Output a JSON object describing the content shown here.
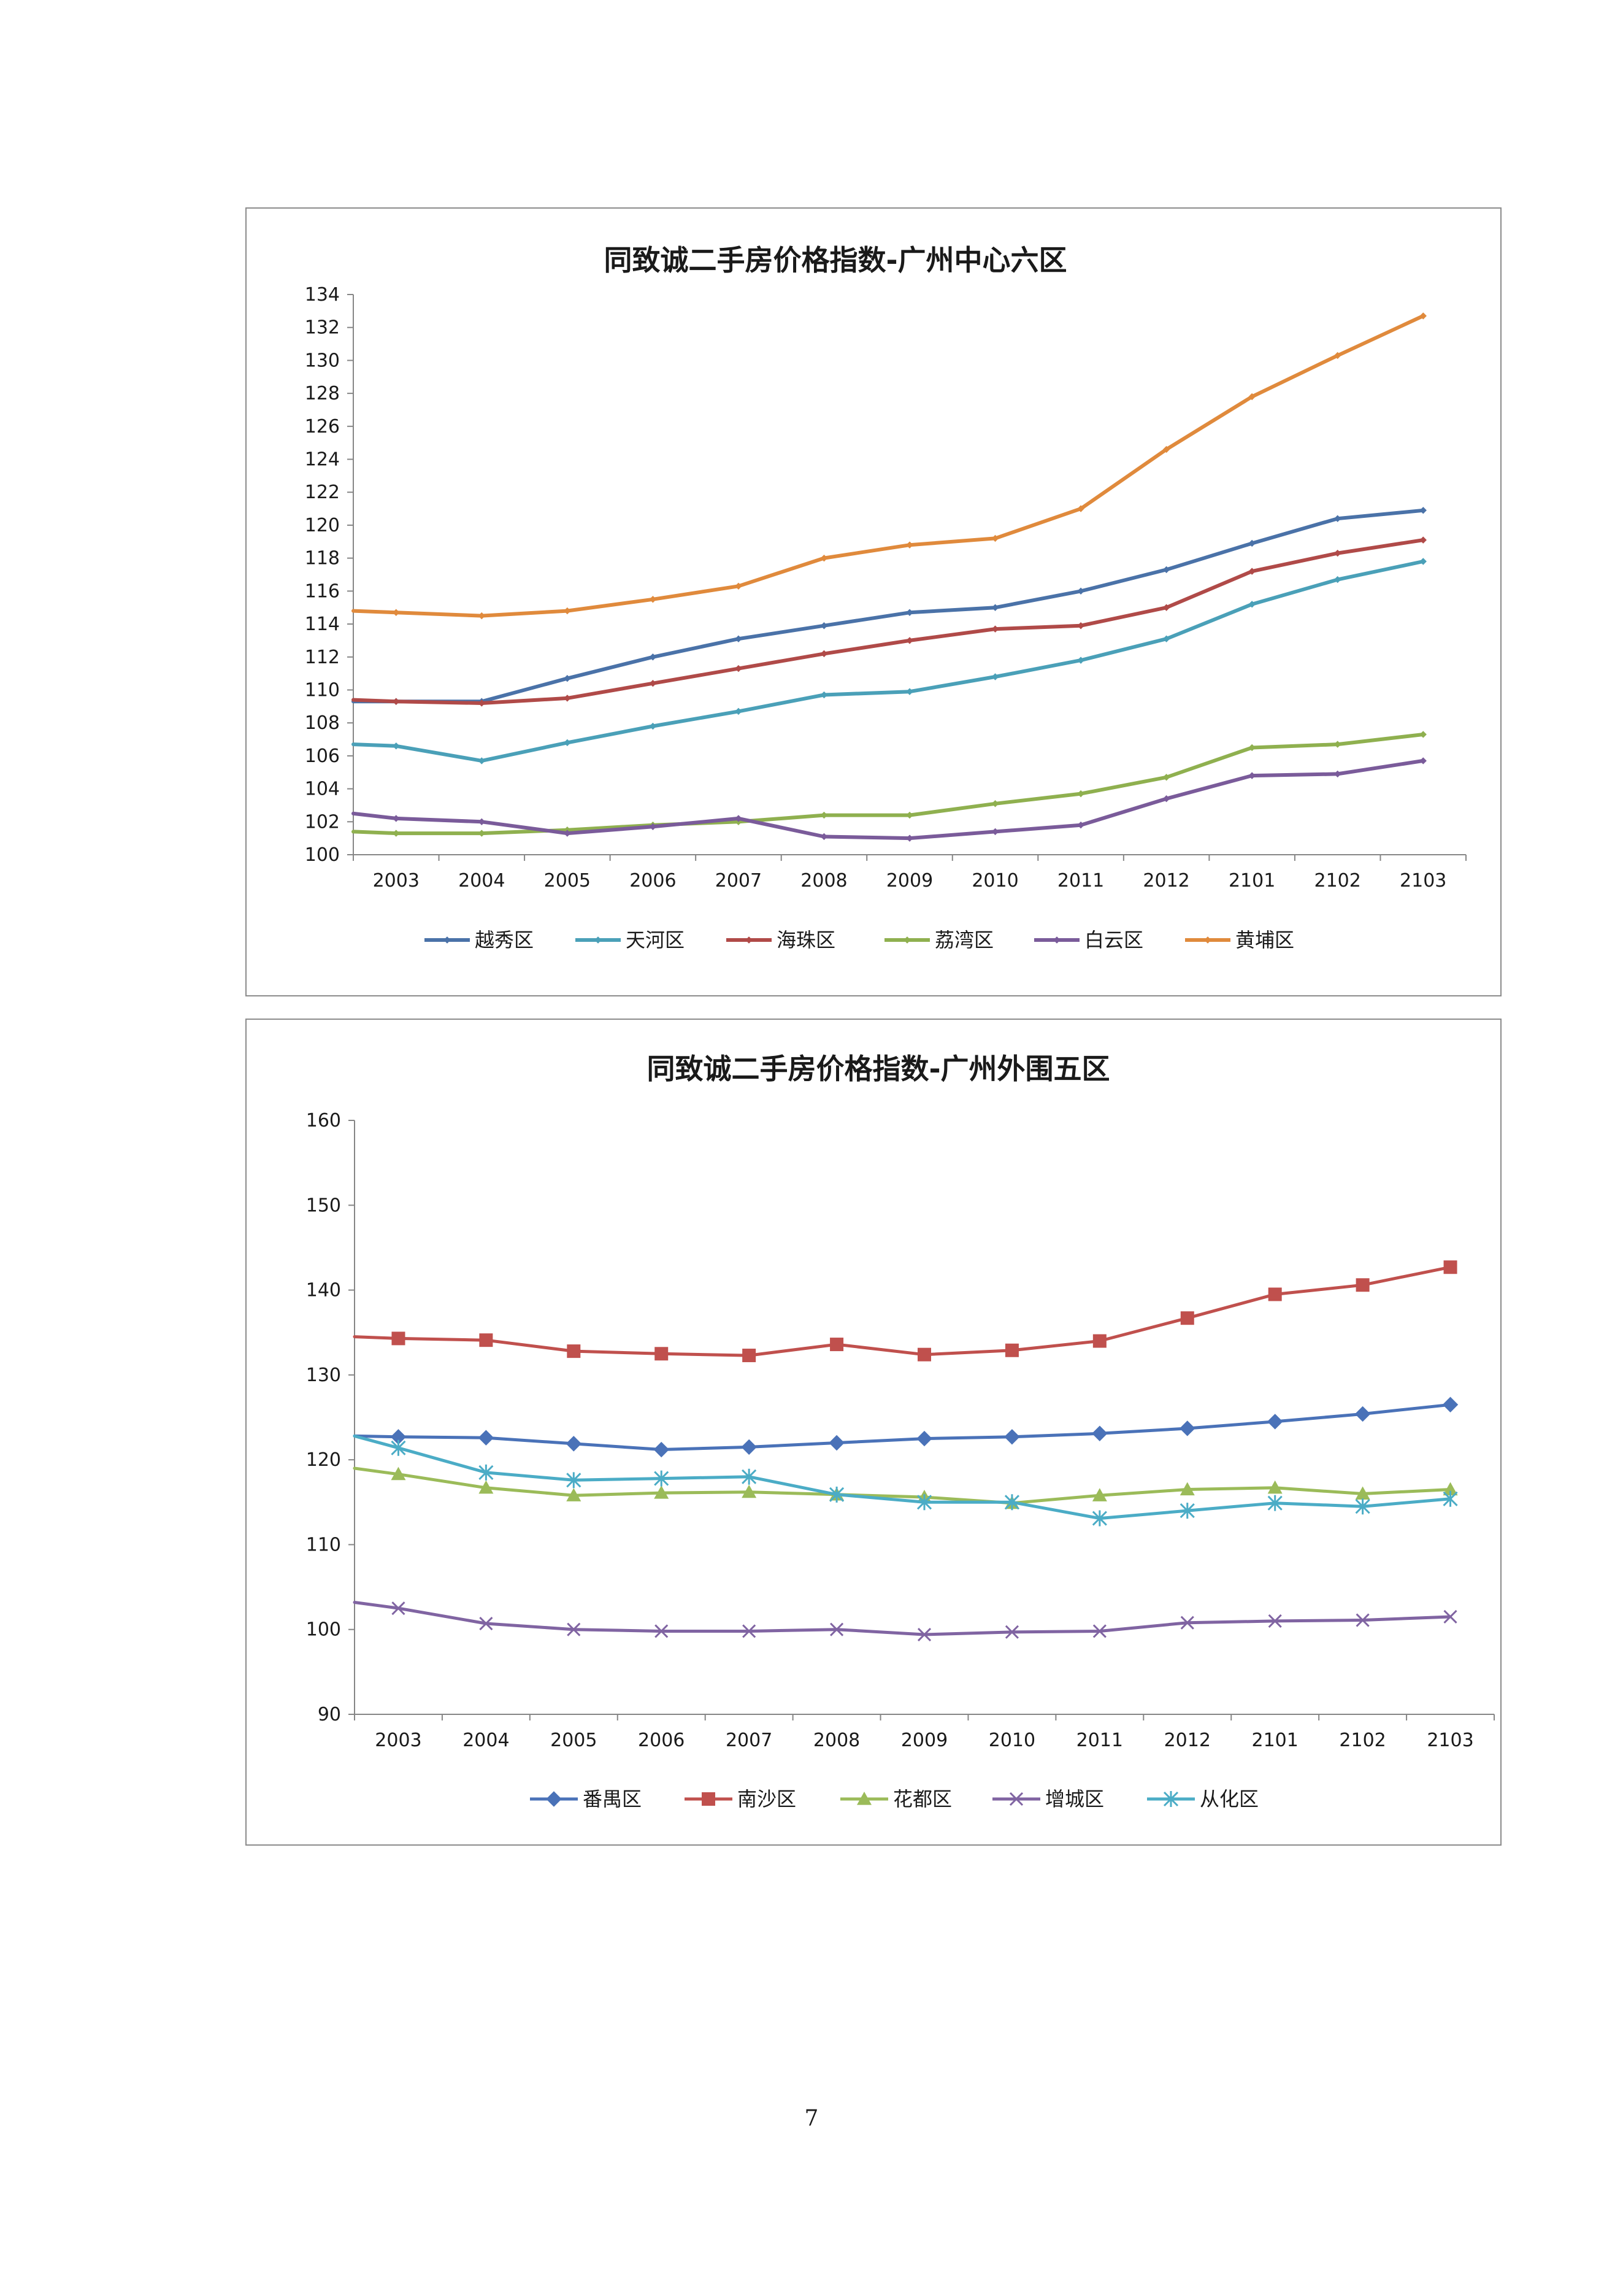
{
  "page": {
    "page_number": "7"
  },
  "chart_data": [
    {
      "type": "line",
      "title": "同致诚二手房价格指数-广州中心六区",
      "xlabel": "",
      "ylabel": "",
      "categories": [
        "2003",
        "2004",
        "2005",
        "2006",
        "2007",
        "2008",
        "2009",
        "2010",
        "2011",
        "2012",
        "2101",
        "2102",
        "2103"
      ],
      "ylim": [
        100,
        134
      ],
      "ytick_step": 2,
      "grid": false,
      "legend_position": "bottom",
      "series": [
        {
          "name": "越秀区",
          "color": "#4a72a8",
          "marker": "small-diamond",
          "start": 109.3,
          "values": [
            109.3,
            109.3,
            110.7,
            112.0,
            113.1,
            113.9,
            114.7,
            115.0,
            116.0,
            117.3,
            118.9,
            120.4,
            120.9
          ]
        },
        {
          "name": "天河区",
          "color": "#4aa0b8",
          "marker": "small-diamond",
          "start": 106.7,
          "values": [
            106.6,
            105.7,
            106.8,
            107.8,
            108.7,
            109.7,
            109.9,
            110.8,
            111.8,
            113.1,
            115.2,
            116.7,
            117.8
          ]
        },
        {
          "name": "海珠区",
          "color": "#b04a48",
          "marker": "small-diamond",
          "start": 109.4,
          "values": [
            109.3,
            109.2,
            109.5,
            110.4,
            111.3,
            112.2,
            113.0,
            113.7,
            113.9,
            115.0,
            117.2,
            118.3,
            119.1
          ]
        },
        {
          "name": "荔湾区",
          "color": "#8fb04f",
          "marker": "small-diamond",
          "start": 101.4,
          "values": [
            101.3,
            101.3,
            101.5,
            101.8,
            102.0,
            102.4,
            102.4,
            103.1,
            103.7,
            104.7,
            106.5,
            106.7,
            107.3
          ]
        },
        {
          "name": "白云区",
          "color": "#7a5b9a",
          "marker": "small-diamond",
          "start": 102.5,
          "values": [
            102.2,
            102.0,
            101.3,
            101.7,
            102.2,
            101.1,
            101.0,
            101.4,
            101.8,
            103.4,
            104.8,
            104.9,
            105.7
          ]
        },
        {
          "name": "黄埔区",
          "color": "#e08a3c",
          "marker": "small-diamond",
          "start": 114.8,
          "values": [
            114.7,
            114.5,
            114.8,
            115.5,
            116.3,
            118.0,
            118.8,
            119.2,
            121.0,
            124.6,
            127.8,
            130.3,
            132.7
          ]
        }
      ]
    },
    {
      "type": "line",
      "title": "同致诚二手房价格指数-广州外围五区",
      "xlabel": "",
      "ylabel": "",
      "categories": [
        "2003",
        "2004",
        "2005",
        "2006",
        "2007",
        "2008",
        "2009",
        "2010",
        "2011",
        "2012",
        "2101",
        "2102",
        "2103"
      ],
      "ylim": [
        90,
        160
      ],
      "ytick_step": 10,
      "grid": false,
      "legend_position": "bottom",
      "series": [
        {
          "name": "番禺区",
          "color": "#4a72b8",
          "marker": "diamond",
          "start": 122.8,
          "values": [
            122.7,
            122.6,
            121.9,
            121.2,
            121.5,
            122.0,
            122.5,
            122.7,
            123.1,
            123.7,
            124.5,
            125.4,
            126.5
          ]
        },
        {
          "name": "南沙区",
          "color": "#c0504d",
          "marker": "square",
          "start": 134.5,
          "values": [
            134.3,
            134.1,
            132.8,
            132.5,
            132.3,
            133.6,
            132.4,
            132.9,
            134.0,
            136.7,
            139.5,
            140.6,
            142.7
          ]
        },
        {
          "name": "花都区",
          "color": "#9bbb59",
          "marker": "triangle",
          "start": 119.0,
          "values": [
            118.3,
            116.7,
            115.8,
            116.1,
            116.2,
            115.9,
            115.6,
            114.9,
            115.8,
            116.5,
            116.7,
            116.0,
            116.5
          ]
        },
        {
          "name": "增城区",
          "color": "#8064a2",
          "marker": "x",
          "start": 103.2,
          "values": [
            102.5,
            100.7,
            100.0,
            99.8,
            99.8,
            100.0,
            99.4,
            99.7,
            99.8,
            100.8,
            101.0,
            101.1,
            101.5
          ]
        },
        {
          "name": "从化区",
          "color": "#4bacc6",
          "marker": "asterisk",
          "start": 122.8,
          "values": [
            121.4,
            118.5,
            117.6,
            117.8,
            118.0,
            115.9,
            115.0,
            115.0,
            113.1,
            114.0,
            114.9,
            114.5,
            115.4
          ]
        }
      ]
    }
  ]
}
